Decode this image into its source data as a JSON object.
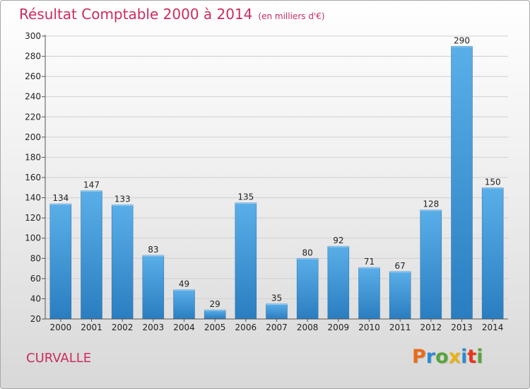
{
  "chart_data": {
    "type": "bar",
    "title": "Résultat Comptable 2000 à 2014",
    "subtitle": "(en milliers d'€)",
    "categories": [
      "2000",
      "2001",
      "2002",
      "2003",
      "2004",
      "2005",
      "2006",
      "2007",
      "2008",
      "2009",
      "2010",
      "2011",
      "2012",
      "2013",
      "2014"
    ],
    "values": [
      134,
      147,
      133,
      83,
      49,
      29,
      135,
      35,
      80,
      92,
      71,
      67,
      128,
      290,
      150
    ],
    "ylim": [
      20,
      300
    ],
    "yticks": [
      20,
      40,
      60,
      80,
      100,
      120,
      140,
      160,
      180,
      200,
      220,
      240,
      260,
      280,
      300
    ],
    "grid": true,
    "bar_color": "#3b95d8"
  },
  "footer": {
    "place": "CURVALLE",
    "logo": "Proxiti",
    "logo_colors": [
      "#e86a1a",
      "#2b8bd3",
      "#55a53a",
      "#e8b21a",
      "#2b8bd3",
      "#e8351a",
      "#55a53a"
    ]
  }
}
